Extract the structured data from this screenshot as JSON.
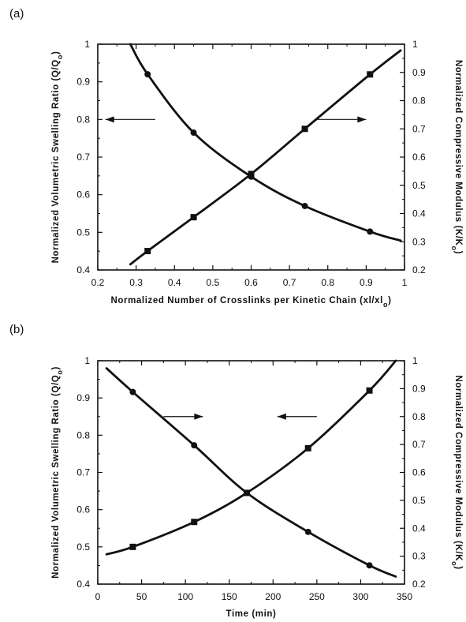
{
  "colors": {
    "ink": "#111111",
    "background": "#ffffff"
  },
  "chart_data": [
    {
      "type": "line",
      "panel_label": "(a)",
      "xlabel": "Normalized Number of Crosslinks per Kinetic Chain (xl/xl",
      "xlabel_sub": "o",
      "xlabel_close": ")",
      "ylabel_left": "Normalized Volumetric Swelling Ratio (Q/Q",
      "ylabel_left_sub": "o",
      "ylabel_left_close": ")",
      "ylabel_right": "Normalized Compressive Modulus (K/K",
      "ylabel_right_sub": "o",
      "ylabel_right_close": ")",
      "xlim": [
        0.2,
        1.0
      ],
      "ylim_left": [
        0.4,
        1.0
      ],
      "ylim_right": [
        0.2,
        1.0
      ],
      "xticks": [
        "0.2",
        "0.3",
        "0.4",
        "0.5",
        "0.6",
        "0.7",
        "0.8",
        "0.9",
        "1"
      ],
      "yticks_left": [
        "0.4",
        "0.5",
        "0.6",
        "0.7",
        "0.8",
        "0.9",
        "1"
      ],
      "yticks_right": [
        "0.2",
        "0.3",
        "0.4",
        "0.5",
        "0.6",
        "0.7",
        "0.8",
        "0.9",
        "1"
      ],
      "series": [
        {
          "axis": "left",
          "marker": "circle",
          "points": [
            [
              0.33,
              0.92
            ],
            [
              0.45,
              0.765
            ],
            [
              0.6,
              0.648
            ],
            [
              0.74,
              0.57
            ],
            [
              0.91,
              0.502
            ]
          ],
          "curve": [
            [
              0.285,
              1.0
            ],
            [
              0.33,
              0.92
            ],
            [
              0.45,
              0.765
            ],
            [
              0.6,
              0.648
            ],
            [
              0.74,
              0.57
            ],
            [
              0.91,
              0.502
            ],
            [
              0.99,
              0.478
            ]
          ]
        },
        {
          "axis": "right",
          "marker": "square",
          "points": [
            [
              0.33,
              0.267
            ],
            [
              0.45,
              0.387
            ],
            [
              0.6,
              0.54
            ],
            [
              0.74,
              0.7
            ],
            [
              0.91,
              0.893
            ]
          ],
          "curve": [
            [
              0.285,
              0.22
            ],
            [
              0.33,
              0.267
            ],
            [
              0.45,
              0.387
            ],
            [
              0.6,
              0.54
            ],
            [
              0.74,
              0.7
            ],
            [
              0.91,
              0.893
            ],
            [
              0.99,
              0.978
            ]
          ]
        }
      ],
      "arrows": [
        {
          "from": [
            0.35,
            0.8
          ],
          "to": [
            0.22,
            0.8
          ],
          "axis": "left"
        },
        {
          "from": [
            0.77,
            0.8
          ],
          "to": [
            0.9,
            0.8
          ],
          "axis": "left"
        }
      ]
    },
    {
      "type": "line",
      "panel_label": "(b)",
      "xlabel": "Time (min)",
      "xlabel_sub": "",
      "xlabel_close": "",
      "ylabel_left": "Normalized Volumetric Swelling Ratio (Q/Q",
      "ylabel_left_sub": "o",
      "ylabel_left_close": ")",
      "ylabel_right": "Normalized Compressive Modulus (K/K",
      "ylabel_right_sub": "o",
      "ylabel_right_close": ")",
      "xlim": [
        0,
        350
      ],
      "ylim_left": [
        0.4,
        1.0
      ],
      "ylim_right": [
        0.2,
        1.0
      ],
      "xticks": [
        "0",
        "50",
        "100",
        "150",
        "200",
        "250",
        "300",
        "350"
      ],
      "yticks_left": [
        "0.4",
        "0.5",
        "0.6",
        "0.7",
        "0.8",
        "0.9",
        "1"
      ],
      "yticks_right": [
        "0.2",
        "0.3",
        "0.4",
        "0.5",
        "0.6",
        "0.7",
        "0.8",
        "0.9",
        "1"
      ],
      "series": [
        {
          "axis": "right",
          "marker": "circle",
          "points": [
            [
              40,
              0.888
            ],
            [
              110,
              0.697
            ],
            [
              170,
              0.527
            ],
            [
              240,
              0.387
            ],
            [
              310,
              0.267
            ]
          ],
          "curve": [
            [
              10,
              0.973
            ],
            [
              40,
              0.888
            ],
            [
              110,
              0.697
            ],
            [
              170,
              0.527
            ],
            [
              240,
              0.387
            ],
            [
              310,
              0.267
            ],
            [
              340,
              0.227
            ]
          ]
        },
        {
          "axis": "left",
          "marker": "square",
          "points": [
            [
              40,
              0.5
            ],
            [
              110,
              0.567
            ],
            [
              170,
              0.645
            ],
            [
              240,
              0.765
            ],
            [
              310,
              0.92
            ]
          ],
          "curve": [
            [
              10,
              0.48
            ],
            [
              40,
              0.5
            ],
            [
              110,
              0.567
            ],
            [
              170,
              0.645
            ],
            [
              240,
              0.765
            ],
            [
              310,
              0.92
            ],
            [
              340,
              1.0
            ]
          ]
        }
      ],
      "arrows": [
        {
          "from": [
            75,
            0.85
          ],
          "to": [
            120,
            0.85
          ],
          "axis": "left"
        },
        {
          "from": [
            250,
            0.85
          ],
          "to": [
            205,
            0.85
          ],
          "axis": "left"
        }
      ]
    }
  ]
}
